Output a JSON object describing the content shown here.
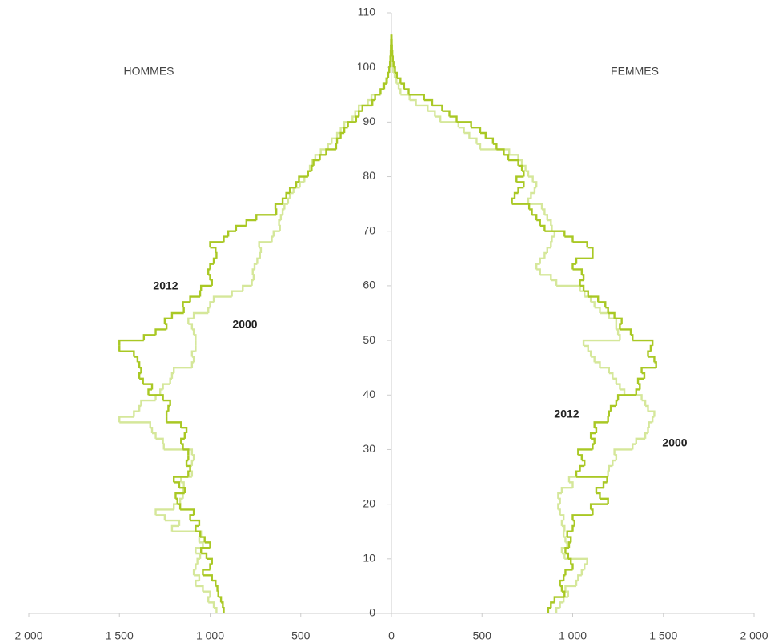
{
  "chart_data": {
    "type": "pyramid",
    "x": [
      0,
      1,
      2,
      3,
      4,
      5,
      6,
      7,
      8,
      9,
      10,
      11,
      12,
      13,
      14,
      15,
      16,
      17,
      18,
      19,
      20,
      21,
      22,
      23,
      24,
      25,
      26,
      27,
      28,
      29,
      30,
      31,
      32,
      33,
      34,
      35,
      36,
      37,
      38,
      39,
      40,
      41,
      42,
      43,
      44,
      45,
      46,
      47,
      48,
      49,
      50,
      51,
      52,
      53,
      54,
      55,
      56,
      57,
      58,
      59,
      60,
      61,
      62,
      63,
      64,
      65,
      66,
      67,
      68,
      69,
      70,
      71,
      72,
      73,
      74,
      75,
      76,
      77,
      78,
      79,
      80,
      81,
      82,
      83,
      84,
      85,
      86,
      87,
      88,
      89,
      90,
      91,
      92,
      93,
      94,
      95,
      96,
      97,
      98,
      99,
      100,
      101,
      102,
      103,
      104,
      105
    ],
    "ylim": [
      0,
      110
    ],
    "yticks": [
      0,
      10,
      20,
      30,
      40,
      50,
      60,
      70,
      80,
      90,
      100,
      110
    ],
    "left": {
      "label": "HOMMES",
      "xlim": [
        0,
        2000
      ],
      "xticks": [
        {
          "value": 2000,
          "label": "2 000"
        },
        {
          "value": 1500,
          "label": "1 500"
        },
        {
          "value": 1000,
          "label": "1 000"
        },
        500
      ],
      "series": [
        {
          "name": "2000",
          "color": "#d5e79a",
          "values": [
            965,
            980,
            1010,
            1000,
            1040,
            1080,
            1060,
            1090,
            1080,
            1070,
            1055,
            1080,
            1040,
            1060,
            1050,
            1210,
            1170,
            1250,
            1300,
            1200,
            1165,
            1150,
            1150,
            1145,
            1160,
            1100,
            1110,
            1100,
            1090,
            1100,
            1255,
            1260,
            1300,
            1320,
            1330,
            1500,
            1420,
            1390,
            1380,
            1300,
            1275,
            1260,
            1220,
            1210,
            1200,
            1100,
            1090,
            1100,
            1080,
            1080,
            1080,
            1090,
            1100,
            1120,
            1090,
            1010,
            1000,
            980,
            880,
            820,
            770,
            760,
            765,
            755,
            740,
            725,
            720,
            730,
            660,
            650,
            615,
            620,
            610,
            600,
            590,
            570,
            560,
            540,
            505,
            480,
            460,
            450,
            440,
            420,
            390,
            350,
            330,
            300,
            280,
            260,
            215,
            200,
            180,
            130,
            110,
            60,
            45,
            30,
            20,
            12,
            8,
            5,
            3,
            2,
            1,
            1
          ]
        },
        {
          "name": "2012",
          "color": "#a9c824",
          "values": [
            925,
            930,
            940,
            955,
            960,
            970,
            990,
            1040,
            1000,
            990,
            1020,
            1050,
            1000,
            1030,
            1055,
            1080,
            1060,
            1110,
            1090,
            1165,
            1180,
            1190,
            1140,
            1170,
            1200,
            1120,
            1110,
            1130,
            1120,
            1120,
            1150,
            1160,
            1140,
            1130,
            1160,
            1240,
            1240,
            1230,
            1220,
            1260,
            1340,
            1320,
            1370,
            1390,
            1380,
            1390,
            1400,
            1420,
            1500,
            1500,
            1365,
            1300,
            1240,
            1250,
            1210,
            1145,
            1150,
            1110,
            1055,
            1050,
            990,
            1000,
            1010,
            1000,
            980,
            965,
            970,
            1000,
            925,
            900,
            857,
            800,
            745,
            635,
            640,
            600,
            580,
            560,
            525,
            510,
            460,
            440,
            430,
            395,
            360,
            305,
            300,
            280,
            260,
            240,
            195,
            180,
            160,
            105,
            90,
            60,
            40,
            25,
            18,
            12,
            8,
            6,
            4,
            3,
            2,
            1
          ]
        }
      ]
    },
    "right": {
      "label": "FEMMES",
      "xlim": [
        0,
        2000
      ],
      "xticks": [
        0,
        500,
        {
          "value": 1000,
          "label": "1 000"
        },
        {
          "value": 1500,
          "label": "1 500"
        },
        {
          "value": 2000,
          "label": "2 000"
        }
      ],
      "series": [
        {
          "name": "2000",
          "color": "#d5e79a",
          "values": [
            910,
            930,
            950,
            975,
            960,
            1020,
            1030,
            1050,
            1065,
            1080,
            955,
            940,
            970,
            960,
            950,
            955,
            940,
            950,
            930,
            920,
            930,
            920,
            940,
            1000,
            980,
            1195,
            1200,
            1220,
            1240,
            1230,
            1330,
            1350,
            1400,
            1415,
            1420,
            1440,
            1450,
            1415,
            1400,
            1380,
            1285,
            1260,
            1240,
            1220,
            1200,
            1150,
            1120,
            1100,
            1085,
            1060,
            1260,
            1250,
            1240,
            1240,
            1200,
            1150,
            1120,
            1100,
            1065,
            1040,
            910,
            880,
            820,
            800,
            820,
            845,
            860,
            880,
            885,
            900,
            885,
            880,
            860,
            845,
            830,
            755,
            770,
            790,
            800,
            780,
            755,
            740,
            720,
            700,
            650,
            490,
            470,
            430,
            400,
            370,
            270,
            240,
            200,
            135,
            100,
            50,
            40,
            28,
            18,
            10,
            6,
            4,
            3,
            2,
            1,
            1
          ]
        },
        {
          "name": "2012",
          "color": "#a9c824",
          "values": [
            865,
            880,
            900,
            955,
            940,
            930,
            950,
            960,
            1000,
            990,
            975,
            960,
            980,
            990,
            970,
            1000,
            1010,
            1000,
            1110,
            1100,
            1195,
            1150,
            1130,
            1170,
            1190,
            1020,
            1040,
            1065,
            1050,
            1030,
            1110,
            1120,
            1100,
            1130,
            1120,
            1195,
            1200,
            1210,
            1240,
            1250,
            1350,
            1370,
            1360,
            1395,
            1380,
            1460,
            1450,
            1415,
            1430,
            1440,
            1330,
            1320,
            1260,
            1270,
            1230,
            1195,
            1180,
            1140,
            1085,
            1060,
            1040,
            1060,
            1050,
            1000,
            1020,
            1110,
            1110,
            1080,
            1000,
            955,
            845,
            820,
            800,
            775,
            760,
            665,
            680,
            700,
            730,
            690,
            730,
            720,
            700,
            645,
            620,
            580,
            560,
            520,
            490,
            440,
            360,
            320,
            280,
            225,
            180,
            95,
            70,
            50,
            30,
            20,
            12,
            8,
            5,
            3,
            2,
            1
          ]
        }
      ]
    }
  }
}
